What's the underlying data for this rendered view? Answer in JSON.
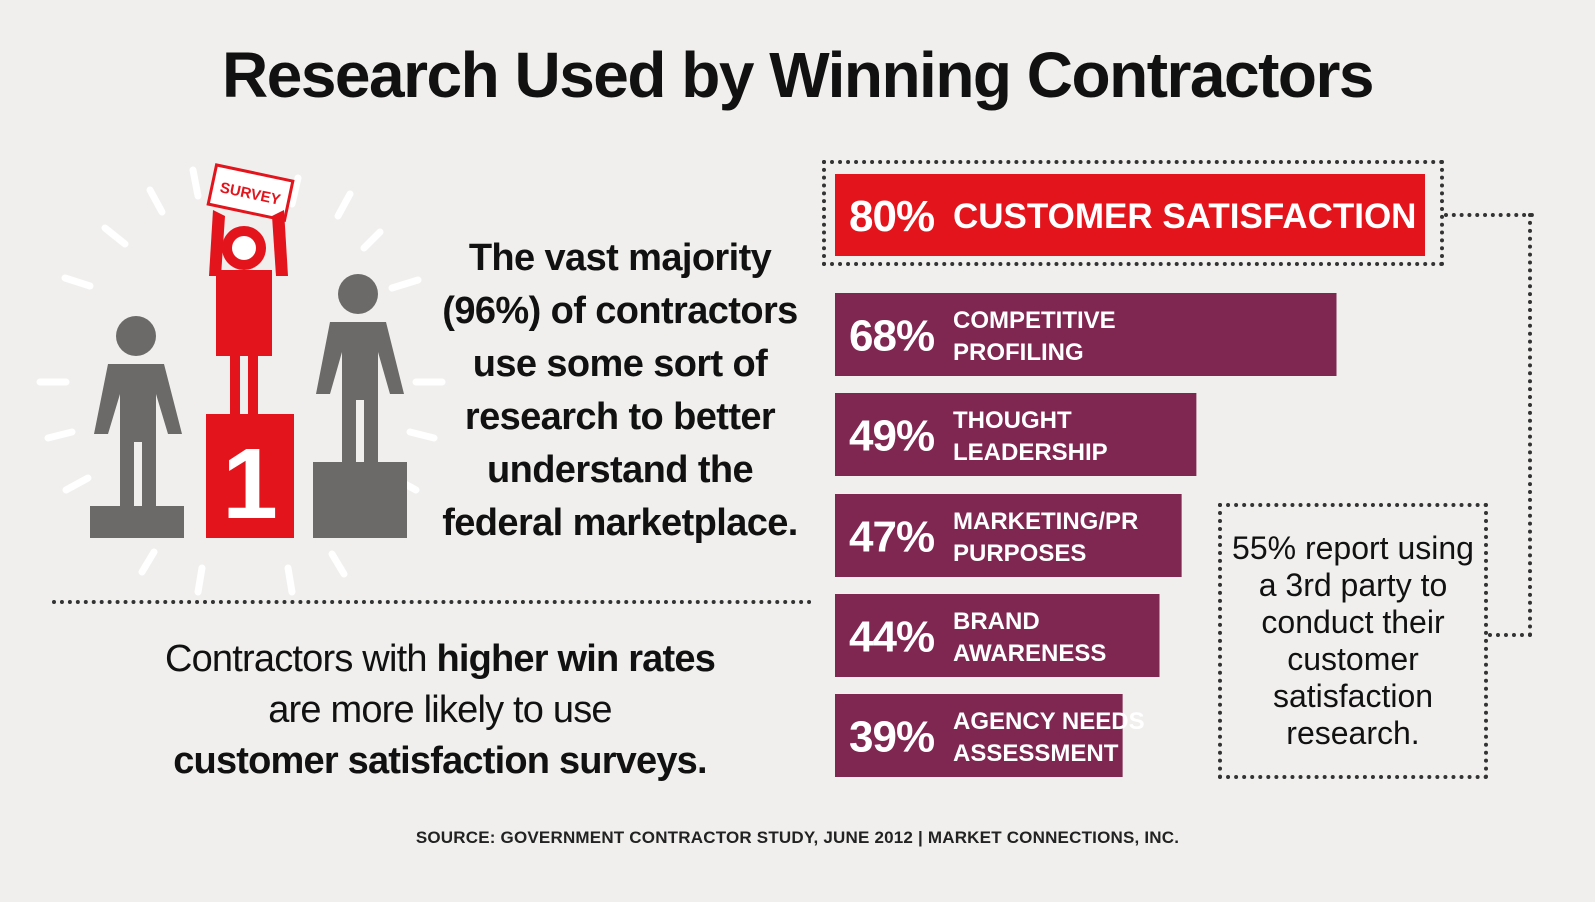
{
  "title": "Research Used by Winning Contractors",
  "illustration": {
    "sign_text": "SURVEY",
    "podium_rank": "1"
  },
  "majority_text": "The vast majority (96%) of contractors use some sort of research to better understand the federal marketplace.",
  "win_rates": {
    "line1_prefix": "Contractors with ",
    "line1_bold": "higher win rates",
    "line2": "are more likely to use",
    "line3_bold": "customer satisfaction surveys."
  },
  "callout_text": "55% report using a 3rd party to conduct their customer satisfaction research.",
  "source": "SOURCE: GOVERNMENT CONTRACTOR STUDY, JUNE 2012 | MARKET CONNECTIONS, INC.",
  "colors": {
    "red": "#e3141c",
    "maroon": "#7f2651",
    "gray": "#6b6a68",
    "background": "#f0efed"
  },
  "chart_data": {
    "type": "bar",
    "orientation": "horizontal",
    "title": "Research Used by Winning Contractors",
    "unit": "%",
    "xlim": [
      0,
      80
    ],
    "categories": [
      [
        "CUSTOMER SATISFACTION"
      ],
      [
        "COMPETITIVE",
        "PROFILING"
      ],
      [
        "THOUGHT",
        "LEADERSHIP"
      ],
      [
        "MARKETING/PR",
        "PURPOSES"
      ],
      [
        "BRAND",
        "AWARENESS"
      ],
      [
        "AGENCY NEEDS",
        "ASSESSMENT"
      ]
    ],
    "values": [
      80,
      68,
      49,
      47,
      44,
      39
    ],
    "value_labels": [
      "80%",
      "68%",
      "49%",
      "47%",
      "44%",
      "39%"
    ],
    "highlight_index": 0
  }
}
